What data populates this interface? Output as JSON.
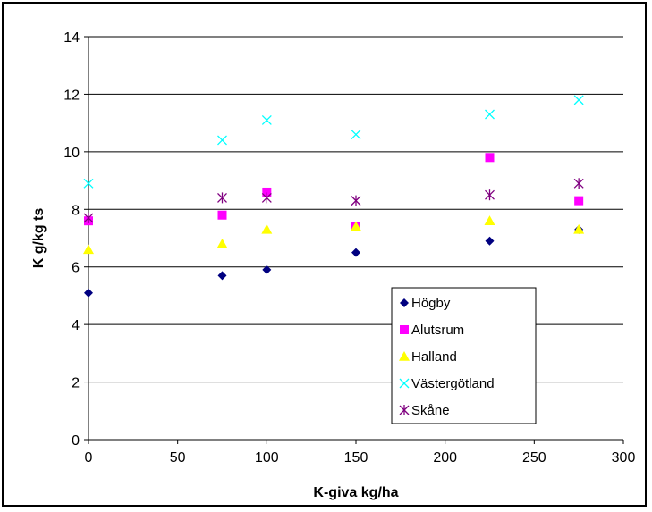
{
  "chart_data": {
    "type": "scatter",
    "title": "",
    "xlabel": "K-giva kg/ha",
    "ylabel": "K g/kg ts",
    "xlim": [
      0,
      300
    ],
    "ylim": [
      0,
      14
    ],
    "xticks": [
      0,
      50,
      100,
      150,
      200,
      250,
      300
    ],
    "yticks": [
      0,
      2,
      4,
      6,
      8,
      10,
      12,
      14
    ],
    "grid": "horizontal",
    "legend": "bottom-right",
    "series": [
      {
        "name": "Högby",
        "marker": "diamond",
        "color": "#000080",
        "points": [
          [
            0,
            5.1
          ],
          [
            75,
            5.7
          ],
          [
            100,
            5.9
          ],
          [
            150,
            6.5
          ],
          [
            225,
            6.9
          ],
          [
            275,
            7.3
          ]
        ]
      },
      {
        "name": "Alutsrum",
        "marker": "square",
        "color": "#FF00FF",
        "points": [
          [
            0,
            7.6
          ],
          [
            75,
            7.8
          ],
          [
            100,
            8.6
          ],
          [
            150,
            7.4
          ],
          [
            225,
            9.8
          ],
          [
            275,
            8.3
          ]
        ]
      },
      {
        "name": "Halland",
        "marker": "triangle",
        "color": "#FFFF00",
        "points": [
          [
            0,
            6.6
          ],
          [
            75,
            6.8
          ],
          [
            100,
            7.3
          ],
          [
            150,
            7.4
          ],
          [
            225,
            7.6
          ],
          [
            275,
            7.3
          ]
        ]
      },
      {
        "name": "Västergötland",
        "marker": "x",
        "color": "#00FFFF",
        "points": [
          [
            0,
            8.9
          ],
          [
            75,
            10.4
          ],
          [
            100,
            11.1
          ],
          [
            150,
            10.6
          ],
          [
            225,
            11.3
          ],
          [
            275,
            11.8
          ]
        ]
      },
      {
        "name": "Skåne",
        "marker": "star",
        "color": "#800080",
        "points": [
          [
            0,
            7.7
          ],
          [
            75,
            8.4
          ],
          [
            100,
            8.4
          ],
          [
            150,
            8.3
          ],
          [
            225,
            8.5
          ],
          [
            275,
            8.9
          ]
        ]
      }
    ]
  }
}
